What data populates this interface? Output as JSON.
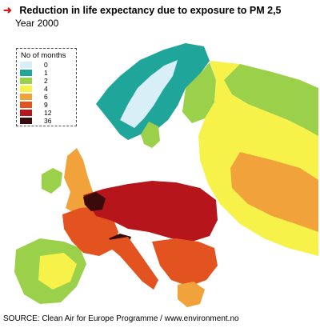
{
  "header": {
    "title": "Reduction in life expectancy due to exposure to PM 2,5",
    "subtitle": "Year 2000"
  },
  "legend": {
    "title": "No of months",
    "items": [
      {
        "label": "0",
        "color": "#d9eff7"
      },
      {
        "label": "1",
        "color": "#1fa59a"
      },
      {
        "label": "2",
        "color": "#9bd04a"
      },
      {
        "label": "4",
        "color": "#f6f24a"
      },
      {
        "label": "6",
        "color": "#f2a23b"
      },
      {
        "label": "9",
        "color": "#e2531f"
      },
      {
        "label": "12",
        "color": "#b5151b"
      },
      {
        "label": "36",
        "color": "#3b0a0b"
      }
    ]
  },
  "map": {
    "sea_color": "#ffffff",
    "border_color": "#555555"
  },
  "source": "SOURCE: Clean Air for Europe Programme / www.environment.no"
}
